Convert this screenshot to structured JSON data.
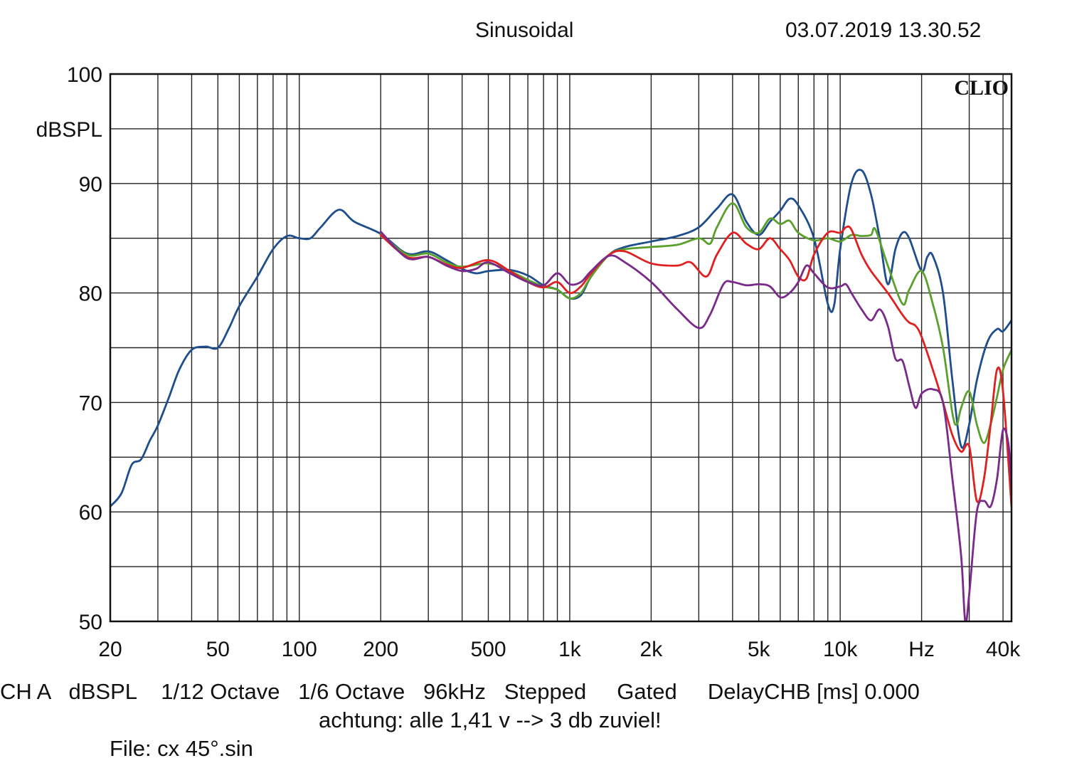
{
  "header": {
    "title": "Sinusoidal",
    "datetime": "03.07.2019 13.30.52"
  },
  "footer": {
    "line1": "CH A   dBSPL    1/12 Octave   1/6 Octave   96kHz   Stepped     Gated     DelayCHB [ms] 0.000",
    "line2": "achtung: alle 1,41 v --> 3 db zuviel!",
    "line3": "File: cx 45°.sin"
  },
  "chart_data": {
    "type": "line",
    "title": "Sinusoidal",
    "brand": "CLIO",
    "xlabel": "Hz",
    "ylabel": "dBSPL",
    "xscale": "log",
    "xlim": [
      20,
      43000
    ],
    "ylim": [
      50,
      100
    ],
    "grid": true,
    "x_tick_labels": [
      {
        "value": 20,
        "label": "20"
      },
      {
        "value": 50,
        "label": "50"
      },
      {
        "value": 100,
        "label": "100"
      },
      {
        "value": 200,
        "label": "200"
      },
      {
        "value": 500,
        "label": "500"
      },
      {
        "value": 1000,
        "label": "1k"
      },
      {
        "value": 2000,
        "label": "2k"
      },
      {
        "value": 5000,
        "label": "5k"
      },
      {
        "value": 10000,
        "label": "10k"
      },
      {
        "value": 20000,
        "label": "Hz"
      },
      {
        "value": 40000,
        "label": "40k"
      }
    ],
    "y_tick_labels": [
      {
        "value": 100,
        "label": "100"
      },
      {
        "value": 90,
        "label": "90"
      },
      {
        "value": 80,
        "label": "80"
      },
      {
        "value": 70,
        "label": "70"
      },
      {
        "value": 60,
        "label": "60"
      },
      {
        "value": 50,
        "label": "50"
      }
    ],
    "series": [
      {
        "name": "blue",
        "color": "#1f4e8c",
        "points": [
          [
            20,
            60.5
          ],
          [
            22,
            61.7
          ],
          [
            24,
            64.3
          ],
          [
            26,
            64.8
          ],
          [
            28,
            66.5
          ],
          [
            30,
            67.9
          ],
          [
            33,
            70.5
          ],
          [
            36,
            73.0
          ],
          [
            40,
            74.8
          ],
          [
            45,
            75.1
          ],
          [
            50,
            75.0
          ],
          [
            55,
            76.8
          ],
          [
            60,
            78.8
          ],
          [
            70,
            81.5
          ],
          [
            80,
            84.0
          ],
          [
            90,
            85.2
          ],
          [
            100,
            85.0
          ],
          [
            110,
            85.0
          ],
          [
            120,
            86.0
          ],
          [
            140,
            87.6
          ],
          [
            160,
            86.5
          ],
          [
            200,
            85.4
          ],
          [
            250,
            83.6
          ],
          [
            300,
            83.8
          ],
          [
            350,
            83.0
          ],
          [
            400,
            82.2
          ],
          [
            450,
            81.8
          ],
          [
            500,
            82.0
          ],
          [
            600,
            82.1
          ],
          [
            700,
            81.6
          ],
          [
            800,
            80.7
          ],
          [
            900,
            80.3
          ],
          [
            1000,
            79.5
          ],
          [
            1100,
            79.8
          ],
          [
            1200,
            81.5
          ],
          [
            1400,
            83.5
          ],
          [
            1600,
            84.2
          ],
          [
            2000,
            84.7
          ],
          [
            2500,
            85.2
          ],
          [
            3000,
            86.0
          ],
          [
            3500,
            87.7
          ],
          [
            4000,
            89.0
          ],
          [
            4500,
            86.5
          ],
          [
            5000,
            85.3
          ],
          [
            5500,
            86.5
          ],
          [
            6000,
            87.5
          ],
          [
            6500,
            88.6
          ],
          [
            7000,
            88.0
          ],
          [
            8000,
            85.0
          ],
          [
            9000,
            79.0
          ],
          [
            9500,
            78.9
          ],
          [
            10000,
            84.0
          ],
          [
            11000,
            90.0
          ],
          [
            12000,
            91.2
          ],
          [
            13000,
            89.0
          ],
          [
            14000,
            85.0
          ],
          [
            15000,
            80.8
          ],
          [
            16000,
            84.0
          ],
          [
            17000,
            85.5
          ],
          [
            18000,
            85.0
          ],
          [
            20000,
            82.0
          ],
          [
            21000,
            83.3
          ],
          [
            22000,
            83.4
          ],
          [
            24000,
            80.0
          ],
          [
            26000,
            72.0
          ],
          [
            28000,
            66.0
          ],
          [
            30000,
            68.0
          ],
          [
            32000,
            72.0
          ],
          [
            35000,
            75.5
          ],
          [
            38000,
            76.7
          ],
          [
            40000,
            76.5
          ],
          [
            43000,
            77.5
          ]
        ]
      },
      {
        "name": "green",
        "color": "#5aa02c",
        "points": [
          [
            200,
            85.4
          ],
          [
            250,
            83.5
          ],
          [
            300,
            83.6
          ],
          [
            350,
            82.8
          ],
          [
            400,
            82.4
          ],
          [
            500,
            82.7
          ],
          [
            600,
            82.0
          ],
          [
            700,
            81.2
          ],
          [
            800,
            80.6
          ],
          [
            900,
            80.3
          ],
          [
            1000,
            79.5
          ],
          [
            1100,
            80.0
          ],
          [
            1200,
            81.5
          ],
          [
            1400,
            83.5
          ],
          [
            1600,
            84.0
          ],
          [
            2000,
            84.2
          ],
          [
            2500,
            84.4
          ],
          [
            3000,
            85.0
          ],
          [
            3300,
            84.5
          ],
          [
            3500,
            86.0
          ],
          [
            4000,
            88.2
          ],
          [
            4500,
            86.0
          ],
          [
            5000,
            85.5
          ],
          [
            5500,
            86.8
          ],
          [
            6000,
            86.3
          ],
          [
            6500,
            86.6
          ],
          [
            7000,
            85.5
          ],
          [
            8000,
            84.8
          ],
          [
            9000,
            85.0
          ],
          [
            10000,
            84.7
          ],
          [
            11000,
            85.3
          ],
          [
            12000,
            85.2
          ],
          [
            13000,
            85.3
          ],
          [
            13500,
            85.8
          ],
          [
            15000,
            82.5
          ],
          [
            17000,
            79.0
          ],
          [
            18000,
            80.3
          ],
          [
            20000,
            82.0
          ],
          [
            22000,
            79.0
          ],
          [
            24000,
            75.0
          ],
          [
            26000,
            69.0
          ],
          [
            27000,
            68.0
          ],
          [
            28000,
            69.5
          ],
          [
            30000,
            71.0
          ],
          [
            32000,
            68.0
          ],
          [
            34000,
            66.3
          ],
          [
            36000,
            68.0
          ],
          [
            38000,
            70.5
          ],
          [
            40000,
            73.0
          ],
          [
            43000,
            74.8
          ]
        ]
      },
      {
        "name": "red",
        "color": "#e02020",
        "points": [
          [
            200,
            85.3
          ],
          [
            250,
            83.3
          ],
          [
            300,
            83.3
          ],
          [
            350,
            82.6
          ],
          [
            400,
            82.3
          ],
          [
            500,
            83.0
          ],
          [
            600,
            82.0
          ],
          [
            700,
            81.0
          ],
          [
            800,
            80.5
          ],
          [
            900,
            81.0
          ],
          [
            1000,
            80.0
          ],
          [
            1100,
            80.6
          ],
          [
            1200,
            81.8
          ],
          [
            1400,
            83.5
          ],
          [
            1600,
            83.8
          ],
          [
            2000,
            82.7
          ],
          [
            2500,
            82.5
          ],
          [
            2800,
            82.8
          ],
          [
            3200,
            81.5
          ],
          [
            3500,
            83.5
          ],
          [
            4000,
            85.5
          ],
          [
            4500,
            84.5
          ],
          [
            5000,
            84.0
          ],
          [
            5500,
            85.0
          ],
          [
            6000,
            84.0
          ],
          [
            6500,
            83.0
          ],
          [
            7000,
            81.5
          ],
          [
            7500,
            81.3
          ],
          [
            8000,
            83.5
          ],
          [
            9000,
            85.5
          ],
          [
            10000,
            85.5
          ],
          [
            10500,
            86.0
          ],
          [
            11000,
            85.8
          ],
          [
            12000,
            83.5
          ],
          [
            13000,
            82.0
          ],
          [
            15000,
            80.0
          ],
          [
            17000,
            78.0
          ],
          [
            18000,
            77.3
          ],
          [
            19000,
            77.0
          ],
          [
            20000,
            76.0
          ],
          [
            22000,
            73.0
          ],
          [
            24000,
            70.0
          ],
          [
            26000,
            67.0
          ],
          [
            28000,
            65.5
          ],
          [
            30000,
            66.0
          ],
          [
            32000,
            61.0
          ],
          [
            34000,
            63.0
          ],
          [
            36000,
            68.0
          ],
          [
            38000,
            73.0
          ],
          [
            40000,
            71.0
          ],
          [
            43000,
            60.5
          ]
        ]
      },
      {
        "name": "purple",
        "color": "#7a2a8a",
        "points": [
          [
            200,
            85.6
          ],
          [
            250,
            83.2
          ],
          [
            300,
            83.3
          ],
          [
            350,
            82.5
          ],
          [
            400,
            82.0
          ],
          [
            450,
            82.2
          ],
          [
            500,
            82.8
          ],
          [
            600,
            81.8
          ],
          [
            700,
            81.0
          ],
          [
            800,
            80.7
          ],
          [
            900,
            81.8
          ],
          [
            1000,
            80.8
          ],
          [
            1100,
            81.0
          ],
          [
            1200,
            82.0
          ],
          [
            1400,
            83.4
          ],
          [
            1600,
            82.8
          ],
          [
            2000,
            81.0
          ],
          [
            2500,
            78.5
          ],
          [
            3000,
            76.8
          ],
          [
            3300,
            78.0
          ],
          [
            3700,
            80.8
          ],
          [
            4000,
            81.0
          ],
          [
            4500,
            80.7
          ],
          [
            5000,
            80.8
          ],
          [
            5500,
            80.6
          ],
          [
            6000,
            79.6
          ],
          [
            6500,
            80.0
          ],
          [
            7000,
            81.0
          ],
          [
            7500,
            82.5
          ],
          [
            8000,
            81.8
          ],
          [
            9000,
            80.5
          ],
          [
            10000,
            80.6
          ],
          [
            10500,
            80.8
          ],
          [
            11000,
            80.0
          ],
          [
            12000,
            78.5
          ],
          [
            13000,
            77.5
          ],
          [
            14000,
            78.5
          ],
          [
            15000,
            77.0
          ],
          [
            16000,
            74.0
          ],
          [
            17000,
            73.8
          ],
          [
            18000,
            71.5
          ],
          [
            19000,
            69.5
          ],
          [
            20000,
            70.8
          ],
          [
            22000,
            71.2
          ],
          [
            24000,
            70.0
          ],
          [
            26000,
            63.0
          ],
          [
            28000,
            56.0
          ],
          [
            29000,
            50.0
          ],
          [
            30000,
            52.5
          ],
          [
            32000,
            60.0
          ],
          [
            34000,
            61.0
          ],
          [
            36000,
            60.5
          ],
          [
            38000,
            63.0
          ],
          [
            40000,
            67.5
          ],
          [
            42000,
            66.0
          ],
          [
            43000,
            62.0
          ]
        ]
      }
    ]
  }
}
